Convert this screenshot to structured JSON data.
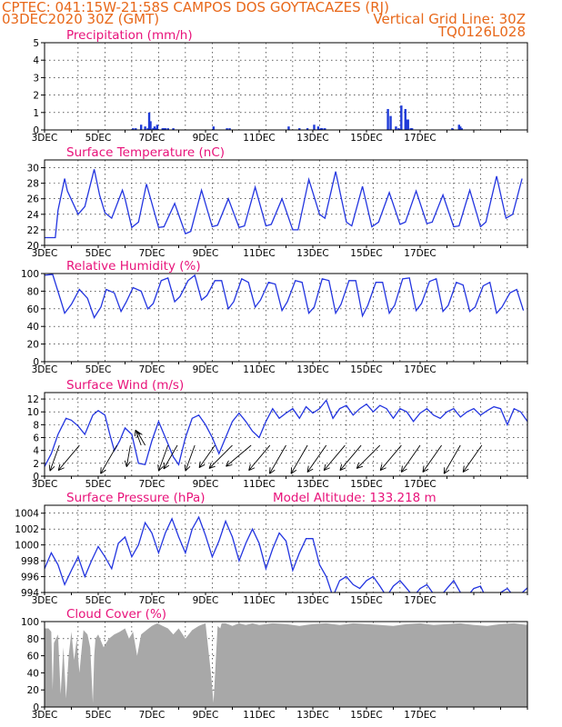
{
  "header": {
    "line1": "CPTEC:   041:15W-21:58S   CAMPOS DOS GOYTACAZES (RJ)",
    "line2": "03DEC2020 30Z (GMT)",
    "grid_note": "Vertical Grid Line: 30Z",
    "code": "TQ0126L028"
  },
  "colors": {
    "header": "#e8681a",
    "title": "#e8127a",
    "series": "#2335e0",
    "bars": "#1f3bd8",
    "cloud": "#a8a8a8"
  },
  "x_axis": {
    "date_labels": [
      "3DEC",
      "5DEC",
      "7DEC",
      "9DEC",
      "11DEC",
      "13DEC",
      "15DEC",
      "17DEC"
    ]
  },
  "chart_data": [
    {
      "type": "bar",
      "title": "Precipitation  (mm/h)",
      "ylim": [
        0,
        5
      ],
      "yticks": [
        "0",
        "1",
        "2",
        "3",
        "4",
        "5"
      ],
      "x_unit": "days since 3DEC 00Z",
      "x": [
        3.3,
        3.4,
        3.6,
        3.75,
        3.85,
        3.9,
        3.95,
        4.05,
        4.1,
        4.15,
        4.2,
        4.4,
        4.45,
        4.5,
        4.6,
        4.8,
        6.3,
        6.8,
        6.9,
        9.1,
        9.5,
        9.8,
        10.05,
        10.2,
        10.3,
        10.35,
        10.45,
        12.8,
        12.9,
        13.1,
        13.2,
        13.3,
        13.45,
        13.5,
        13.55,
        13.65,
        13.7,
        15.2,
        15.45,
        15.5,
        15.55
      ],
      "values": [
        0.1,
        0.1,
        0.3,
        0.2,
        0.1,
        1.0,
        0.5,
        0.1,
        0.2,
        0.1,
        0.3,
        0.1,
        0.1,
        0.1,
        0.1,
        0.1,
        0.2,
        0.1,
        0.1,
        0.2,
        0.1,
        0.1,
        0.3,
        0.2,
        0.1,
        0.1,
        0.1,
        1.2,
        0.8,
        0.2,
        0.1,
        1.4,
        1.2,
        0.6,
        0.6,
        0.1,
        0.1,
        0.1,
        0.3,
        0.2,
        0.1
      ]
    },
    {
      "type": "line",
      "title": "Surface Temperature (nC)",
      "ylim": [
        20,
        31
      ],
      "yticks": [
        "20",
        "22",
        "24",
        "26",
        "28",
        "30"
      ],
      "x_unit": "days since 3DEC 00Z",
      "x": [
        0.0,
        0.4,
        0.5,
        0.75,
        0.85,
        1.25,
        1.5,
        1.85,
        2.05,
        2.25,
        2.5,
        2.9,
        3.0,
        3.25,
        3.5,
        3.8,
        4.25,
        4.45,
        4.85,
        5.25,
        5.45,
        5.85,
        6.25,
        6.45,
        6.85,
        7.25,
        7.45,
        7.85,
        8.25,
        8.45,
        8.85,
        9.25,
        9.45,
        9.85,
        10.25,
        10.45,
        10.85,
        11.25,
        11.45,
        11.85,
        12.2,
        12.45,
        12.85,
        13.25,
        13.45,
        13.85,
        14.25,
        14.45,
        14.85,
        15.25,
        15.45,
        15.85,
        16.25,
        16.45,
        16.85,
        17.2,
        17.45,
        17.8
      ],
      "values": [
        21.0,
        21.0,
        24.5,
        28.6,
        27.0,
        24.0,
        25.0,
        29.8,
        26.5,
        24.2,
        23.5,
        27.1,
        26.0,
        22.3,
        23.0,
        27.9,
        22.3,
        22.4,
        25.4,
        21.5,
        21.8,
        27.1,
        22.4,
        22.6,
        26.0,
        22.3,
        22.5,
        27.5,
        22.5,
        22.7,
        26.0,
        22.0,
        22.0,
        28.5,
        24.0,
        23.5,
        29.5,
        23.0,
        22.5,
        27.6,
        22.4,
        23.0,
        26.8,
        22.7,
        23.0,
        27.0,
        22.8,
        23.0,
        26.5,
        22.4,
        22.5,
        27.1,
        22.4,
        23.0,
        28.9,
        23.5,
        24.0,
        28.6
      ]
    },
    {
      "type": "line",
      "title": "Relative Humidity (%)",
      "ylim": [
        0,
        100
      ],
      "yticks": [
        "0",
        "20",
        "40",
        "60",
        "80",
        "100"
      ],
      "x_unit": "days since 3DEC 00Z",
      "x": [
        0.0,
        0.3,
        0.6,
        0.75,
        1.0,
        1.3,
        1.6,
        1.85,
        2.1,
        2.3,
        2.6,
        2.85,
        3.05,
        3.3,
        3.6,
        3.85,
        4.05,
        4.35,
        4.6,
        4.85,
        5.05,
        5.35,
        5.6,
        5.85,
        6.05,
        6.35,
        6.6,
        6.85,
        7.05,
        7.35,
        7.6,
        7.85,
        8.05,
        8.35,
        8.6,
        8.85,
        9.05,
        9.35,
        9.6,
        9.85,
        10.05,
        10.35,
        10.6,
        10.85,
        11.05,
        11.35,
        11.6,
        11.85,
        12.05,
        12.35,
        12.6,
        12.85,
        13.05,
        13.35,
        13.6,
        13.85,
        14.05,
        14.35,
        14.6,
        14.85,
        15.05,
        15.35,
        15.6,
        15.85,
        16.05,
        16.35,
        16.6,
        16.85,
        17.05,
        17.35,
        17.6,
        17.85
      ],
      "values": [
        98,
        99,
        70,
        55,
        65,
        82,
        72,
        50,
        62,
        82,
        78,
        57,
        68,
        84,
        80,
        60,
        66,
        92,
        95,
        68,
        74,
        92,
        98,
        70,
        75,
        92,
        92,
        60,
        68,
        94,
        90,
        62,
        70,
        90,
        88,
        58,
        68,
        92,
        90,
        55,
        62,
        94,
        92,
        55,
        65,
        92,
        92,
        52,
        64,
        90,
        90,
        55,
        64,
        94,
        95,
        58,
        66,
        91,
        94,
        57,
        64,
        90,
        87,
        57,
        62,
        86,
        90,
        55,
        62,
        78,
        82,
        58
      ]
    },
    {
      "type": "line",
      "title": "Surface Wind (m/s)",
      "ylim": [
        0,
        13
      ],
      "yticks": [
        "0",
        "2",
        "4",
        "6",
        "8",
        "10",
        "12"
      ],
      "x_unit": "days since 3DEC 00Z",
      "x": [
        0.0,
        0.25,
        0.5,
        0.8,
        1.0,
        1.25,
        1.5,
        1.8,
        2.0,
        2.25,
        2.45,
        2.6,
        2.8,
        3.0,
        3.25,
        3.5,
        3.75,
        4.0,
        4.25,
        4.5,
        4.8,
        5.0,
        5.25,
        5.5,
        5.75,
        6.0,
        6.25,
        6.5,
        6.75,
        7.0,
        7.25,
        7.5,
        7.75,
        8.0,
        8.25,
        8.5,
        8.75,
        9.0,
        9.25,
        9.5,
        9.75,
        10.0,
        10.25,
        10.5,
        10.75,
        11.0,
        11.25,
        11.5,
        11.75,
        12.0,
        12.25,
        12.5,
        12.75,
        13.0,
        13.25,
        13.5,
        13.75,
        14.0,
        14.25,
        14.5,
        14.75,
        15.0,
        15.25,
        15.5,
        15.75,
        16.0,
        16.25,
        16.5,
        16.75,
        17.0,
        17.25,
        17.5,
        17.75,
        18.0
      ],
      "values": [
        1.5,
        3.5,
        6.5,
        9.0,
        8.7,
        7.8,
        6.5,
        9.5,
        10.2,
        9.5,
        6.2,
        4.0,
        5.5,
        7.5,
        6.5,
        2.0,
        1.8,
        5.5,
        8.5,
        6.0,
        3.0,
        1.8,
        6.0,
        9.0,
        9.5,
        8.0,
        6.0,
        3.5,
        6.0,
        8.5,
        9.8,
        8.5,
        7.0,
        6.0,
        8.5,
        10.5,
        9.0,
        9.8,
        10.5,
        9.0,
        10.8,
        9.8,
        10.5,
        11.8,
        9.0,
        10.5,
        11.0,
        9.5,
        10.5,
        11.2,
        10.0,
        11.0,
        10.5,
        9.0,
        10.5,
        10.0,
        8.5,
        9.8,
        10.5,
        9.5,
        9.0,
        10.0,
        10.5,
        9.2,
        10.0,
        10.5,
        9.5,
        10.2,
        10.8,
        10.5,
        8.0,
        10.5,
        10.0,
        8.5
      ],
      "arrow_x": [
        0.55,
        1.3,
        2.7,
        3.2,
        3.6,
        3.75,
        4.6,
        4.95,
        5.6,
        6.35,
        7.0,
        7.7,
        8.4,
        9.0,
        9.8,
        10.5,
        11.2,
        11.8,
        12.5,
        13.3,
        14.0,
        14.8,
        15.5,
        16.3
      ],
      "arrow_dir_deg": [
        200,
        220,
        210,
        190,
        340,
        330,
        200,
        210,
        200,
        215,
        225,
        230,
        220,
        210,
        210,
        215,
        220,
        220,
        225,
        220,
        215,
        215,
        210,
        215
      ],
      "arrow_speed": [
        5,
        6,
        6,
        4,
        3,
        3,
        5,
        5,
        5,
        5,
        6,
        6,
        6,
        6,
        6,
        6,
        6,
        6,
        6,
        6,
        6,
        6,
        6,
        6
      ]
    },
    {
      "type": "line",
      "title": "Surface Pressure (hPa)",
      "subtitle": "Model Altitude: 133.218  m",
      "ylim": [
        994,
        1005
      ],
      "yticks": [
        "994",
        "996",
        "998",
        "1000",
        "1002",
        "1004"
      ],
      "x_unit": "days since 3DEC 00Z",
      "x": [
        0.0,
        0.25,
        0.5,
        0.75,
        1.0,
        1.25,
        1.5,
        1.75,
        2.0,
        2.25,
        2.5,
        2.75,
        3.0,
        3.25,
        3.5,
        3.75,
        4.0,
        4.25,
        4.5,
        4.75,
        5.0,
        5.25,
        5.5,
        5.75,
        6.0,
        6.25,
        6.5,
        6.75,
        7.0,
        7.25,
        7.5,
        7.75,
        8.0,
        8.25,
        8.5,
        8.75,
        9.0,
        9.25,
        9.5,
        9.75,
        10.0,
        10.25,
        10.5,
        10.75,
        11.0,
        11.25,
        11.5,
        11.75,
        12.0,
        12.25,
        12.5,
        12.75,
        13.0,
        13.25,
        13.5,
        13.75,
        14.0,
        14.25,
        14.5,
        14.75,
        15.0,
        15.25,
        15.5,
        15.75,
        16.0,
        16.25,
        16.5,
        16.75,
        17.0,
        17.25,
        17.5,
        17.75,
        18.0
      ],
      "values": [
        997.0,
        999.0,
        997.5,
        995.0,
        996.8,
        998.5,
        996.0,
        998.0,
        999.8,
        998.5,
        997.0,
        1000.2,
        1001.0,
        998.5,
        1000.0,
        1002.8,
        1001.5,
        999.0,
        1001.5,
        1003.3,
        1001.0,
        999.0,
        1002.0,
        1003.5,
        1001.2,
        998.5,
        1000.5,
        1003.0,
        1001.0,
        998.0,
        1000.2,
        1002.0,
        1000.2,
        997.0,
        999.5,
        1001.5,
        1000.5,
        996.8,
        999.0,
        1000.8,
        1000.8,
        997.5,
        996.0,
        993.5,
        995.5,
        996.0,
        995.0,
        994.5,
        995.5,
        996.0,
        994.8,
        993.5,
        994.8,
        995.5,
        994.5,
        993.5,
        994.5,
        995.0,
        993.8,
        993.5,
        994.5,
        995.5,
        994.0,
        993.5,
        994.5,
        994.8,
        993.0,
        992.5,
        994.0,
        994.5,
        993.5,
        993.8,
        994.6
      ]
    },
    {
      "type": "area",
      "title": "Cloud Cover (%)",
      "ylim": [
        0,
        100
      ],
      "yticks": [
        "0",
        "20",
        "40",
        "60",
        "80",
        "100"
      ],
      "x_unit": "days since 3DEC 00Z",
      "x": [
        0.0,
        0.15,
        0.25,
        0.3,
        0.35,
        0.5,
        0.6,
        0.7,
        0.8,
        0.9,
        1.0,
        1.1,
        1.2,
        1.3,
        1.45,
        1.6,
        1.7,
        1.8,
        1.85,
        1.9,
        2.0,
        2.2,
        2.4,
        2.6,
        2.8,
        3.0,
        3.15,
        3.3,
        3.45,
        3.6,
        3.8,
        4.0,
        4.2,
        4.4,
        4.6,
        4.8,
        5.0,
        5.25,
        5.5,
        5.75,
        6.0,
        6.2,
        6.3,
        6.45,
        6.55,
        6.6,
        6.75,
        7.0,
        7.25,
        7.5,
        7.75,
        8.0,
        8.5,
        9.0,
        9.5,
        10.0,
        10.5,
        11.0,
        11.5,
        12.0,
        12.5,
        13.0,
        13.5,
        14.0,
        14.5,
        15.0,
        15.5,
        16.0,
        16.5,
        17.0,
        17.5,
        18.0
      ],
      "values": [
        92,
        92,
        88,
        20,
        75,
        85,
        15,
        70,
        10,
        60,
        88,
        55,
        80,
        40,
        90,
        85,
        70,
        5,
        60,
        80,
        85,
        70,
        80,
        85,
        88,
        92,
        80,
        88,
        60,
        85,
        90,
        95,
        98,
        95,
        92,
        85,
        92,
        80,
        90,
        95,
        98,
        40,
        5,
        95,
        92,
        98,
        98,
        95,
        98,
        96,
        98,
        96,
        98,
        97,
        95,
        97,
        98,
        96,
        98,
        97,
        96,
        95,
        97,
        98,
        96,
        97,
        98,
        96,
        95,
        97,
        98,
        96
      ]
    }
  ]
}
